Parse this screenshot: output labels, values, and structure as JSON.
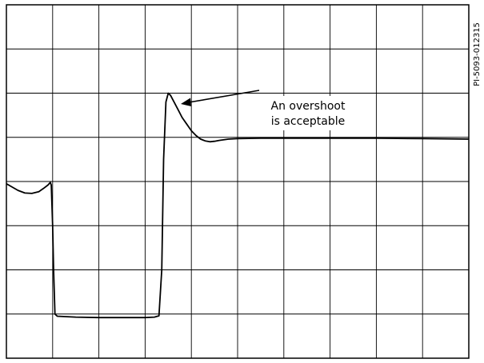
{
  "figure_id": "PI-5093-012315",
  "annotation": {
    "line1": "An overshoot",
    "line2": "is acceptable"
  },
  "chart_data": {
    "type": "line",
    "title": "",
    "xlabel": "",
    "ylabel": "",
    "grid": true,
    "grid_divisions": {
      "x": 10,
      "y": 8
    },
    "xlim": [
      0,
      10
    ],
    "ylim": [
      0,
      8
    ],
    "series": [
      {
        "name": "",
        "color": "#000000",
        "x": [
          0,
          0.1,
          0.25,
          0.4,
          0.55,
          0.7,
          0.8,
          0.9,
          0.95,
          0.97,
          1.0,
          1.02,
          1.05,
          1.1,
          1.5,
          2.0,
          2.5,
          3.0,
          3.2,
          3.3,
          3.36,
          3.4,
          3.45,
          3.5,
          3.55,
          3.6,
          3.7,
          3.8,
          3.9,
          4.0,
          4.1,
          4.2,
          4.3,
          4.4,
          4.5,
          4.6,
          4.8,
          5.0,
          5.5,
          6.0,
          7.0,
          8.0,
          9.0,
          10.0
        ],
        "y": [
          3.95,
          3.89,
          3.8,
          3.74,
          3.73,
          3.77,
          3.84,
          3.92,
          3.98,
          3.92,
          3.0,
          2.0,
          1.0,
          0.95,
          0.93,
          0.92,
          0.92,
          0.92,
          0.93,
          0.96,
          2.0,
          4.5,
          5.8,
          6.0,
          5.95,
          5.85,
          5.65,
          5.45,
          5.3,
          5.15,
          5.04,
          4.96,
          4.92,
          4.9,
          4.91,
          4.93,
          4.96,
          4.97,
          4.98,
          4.98,
          4.98,
          4.98,
          4.97,
          4.96
        ]
      }
    ]
  }
}
